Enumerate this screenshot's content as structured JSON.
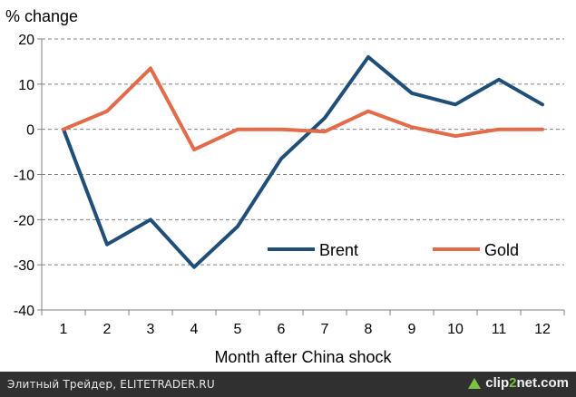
{
  "chart_data": {
    "type": "line",
    "title": "",
    "ylabel": "% change",
    "xlabel": "Month after China shock",
    "categories": [
      "1",
      "2",
      "3",
      "4",
      "5",
      "6",
      "7",
      "8",
      "9",
      "10",
      "11",
      "12"
    ],
    "ylim": [
      -40,
      20
    ],
    "yticks": [
      20,
      10,
      0,
      -10,
      -20,
      -30,
      -40
    ],
    "grid": true,
    "legend_position": "lower-right",
    "series": [
      {
        "name": "Brent",
        "color": "#1f4e79",
        "values": [
          0,
          -25.5,
          -20,
          -30.5,
          -21.5,
          -6.5,
          2.5,
          16,
          8,
          5.5,
          11,
          5.5
        ]
      },
      {
        "name": "Gold",
        "color": "#e26b4a",
        "values": [
          0,
          4,
          13.5,
          -4.5,
          0,
          0,
          -0.5,
          4,
          0.5,
          -1.5,
          0,
          0
        ]
      }
    ]
  },
  "footer": {
    "source_text": "Элитный Трейдер, ELITETRADER.RU",
    "brand_prefix": "clip",
    "brand_accent": "2",
    "brand_suffix": "net.com",
    "brand_icon": "upload-arrow-icon"
  }
}
